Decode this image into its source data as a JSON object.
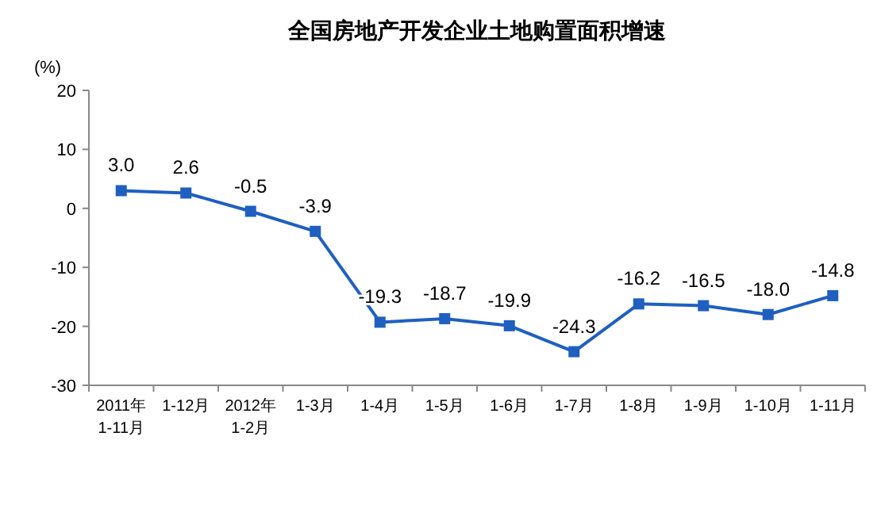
{
  "chart_data": {
    "type": "line",
    "title": "全国房地产开发企业土地购置面积增速",
    "ylabel": "(%)",
    "categories": [
      "2011年\n1-11月",
      "1-12月",
      "2012年\n1-2月",
      "1-3月",
      "1-4月",
      "1-5月",
      "1-6月",
      "1-7月",
      "1-8月",
      "1-9月",
      "1-10月",
      "1-11月"
    ],
    "series": [
      {
        "color": "#1f5fc0",
        "values": [
          3.0,
          2.6,
          -0.5,
          -3.9,
          -19.3,
          -18.7,
          -19.9,
          -24.3,
          -16.2,
          -16.5,
          -18.0,
          -14.8
        ],
        "value_labels": [
          "3.0",
          "2.6",
          "-0.5",
          "-3.9",
          "-19.3",
          "-18.7",
          "-19.9",
          "-24.3",
          "-16.2",
          "-16.5",
          "-18.0",
          "-14.8"
        ]
      }
    ],
    "ylim": [
      -30,
      20
    ],
    "yticks": [
      -30,
      -20,
      -10,
      0,
      10,
      20
    ],
    "grid": false,
    "marker": "square",
    "line_style": "solid"
  }
}
